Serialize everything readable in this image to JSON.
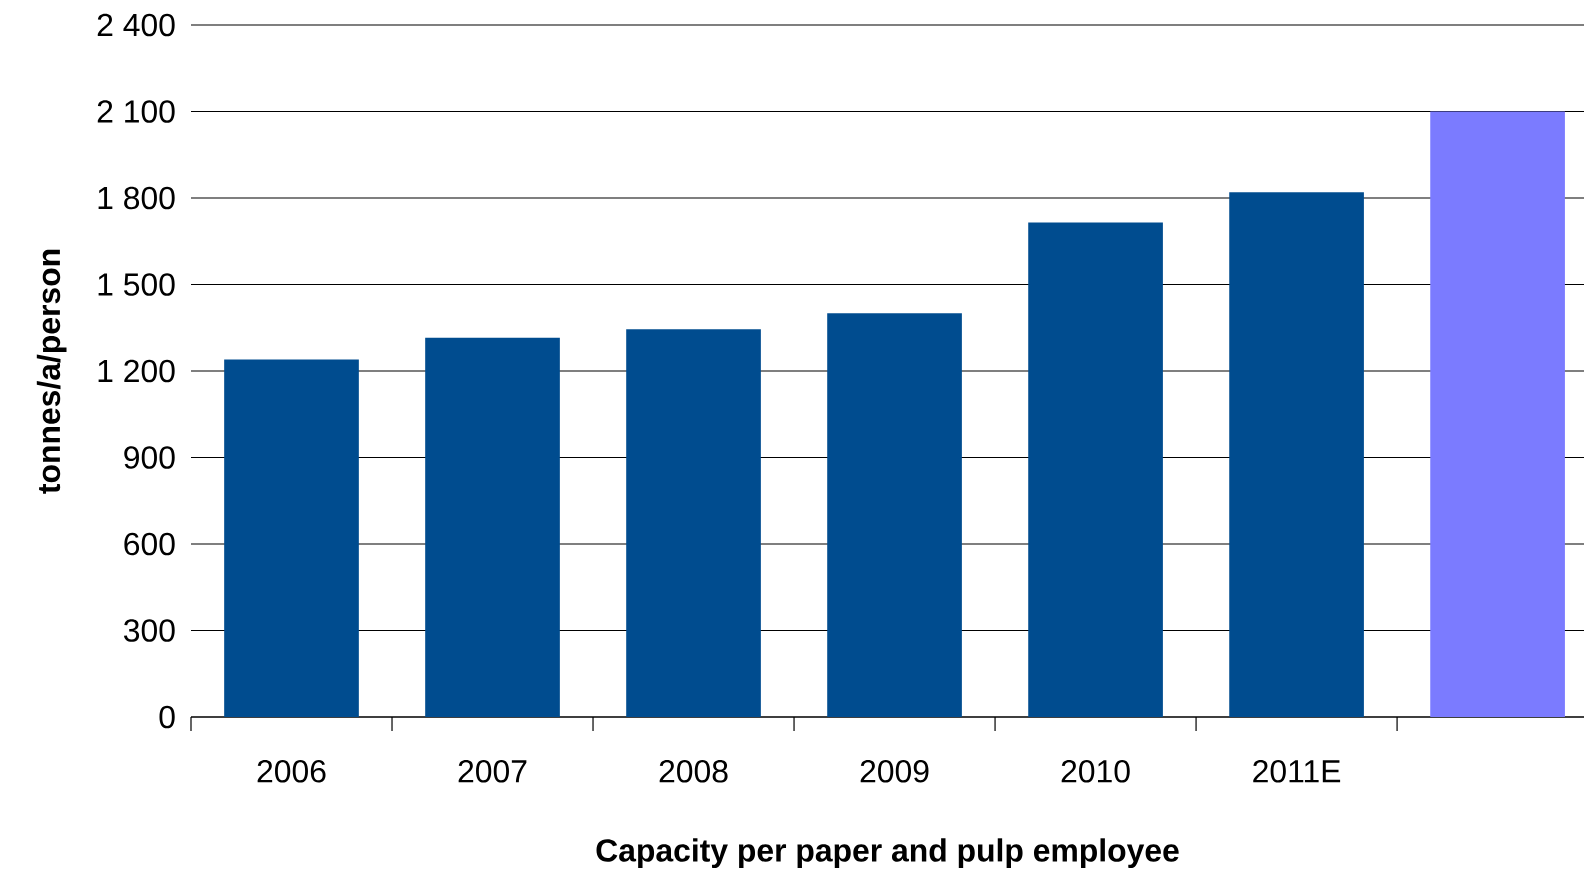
{
  "chart_data": {
    "type": "bar",
    "xlabel": "Capacity per paper and pulp employee",
    "ylabel": "tonnes/a/person",
    "categories": [
      "2006",
      "2007",
      "2008",
      "2009",
      "2010",
      "2011E",
      null
    ],
    "values": [
      1240,
      1315,
      1345,
      1400,
      1715,
      1820,
      2100
    ],
    "colors": [
      "#004c8f",
      "#004c8f",
      "#004c8f",
      "#004c8f",
      "#004c8f",
      "#004c8f",
      "#7b7bff"
    ],
    "ylim": [
      0,
      2400
    ],
    "yticks": [
      0,
      300,
      600,
      900,
      {
        "value": 1200,
        "label": "1 200"
      },
      {
        "value": 1500,
        "label": "1 500"
      },
      {
        "value": 1800,
        "label": "1 800"
      },
      {
        "value": 2100,
        "label": "2 100"
      },
      {
        "value": 2400,
        "label": "2 400"
      }
    ],
    "grid": "y"
  }
}
